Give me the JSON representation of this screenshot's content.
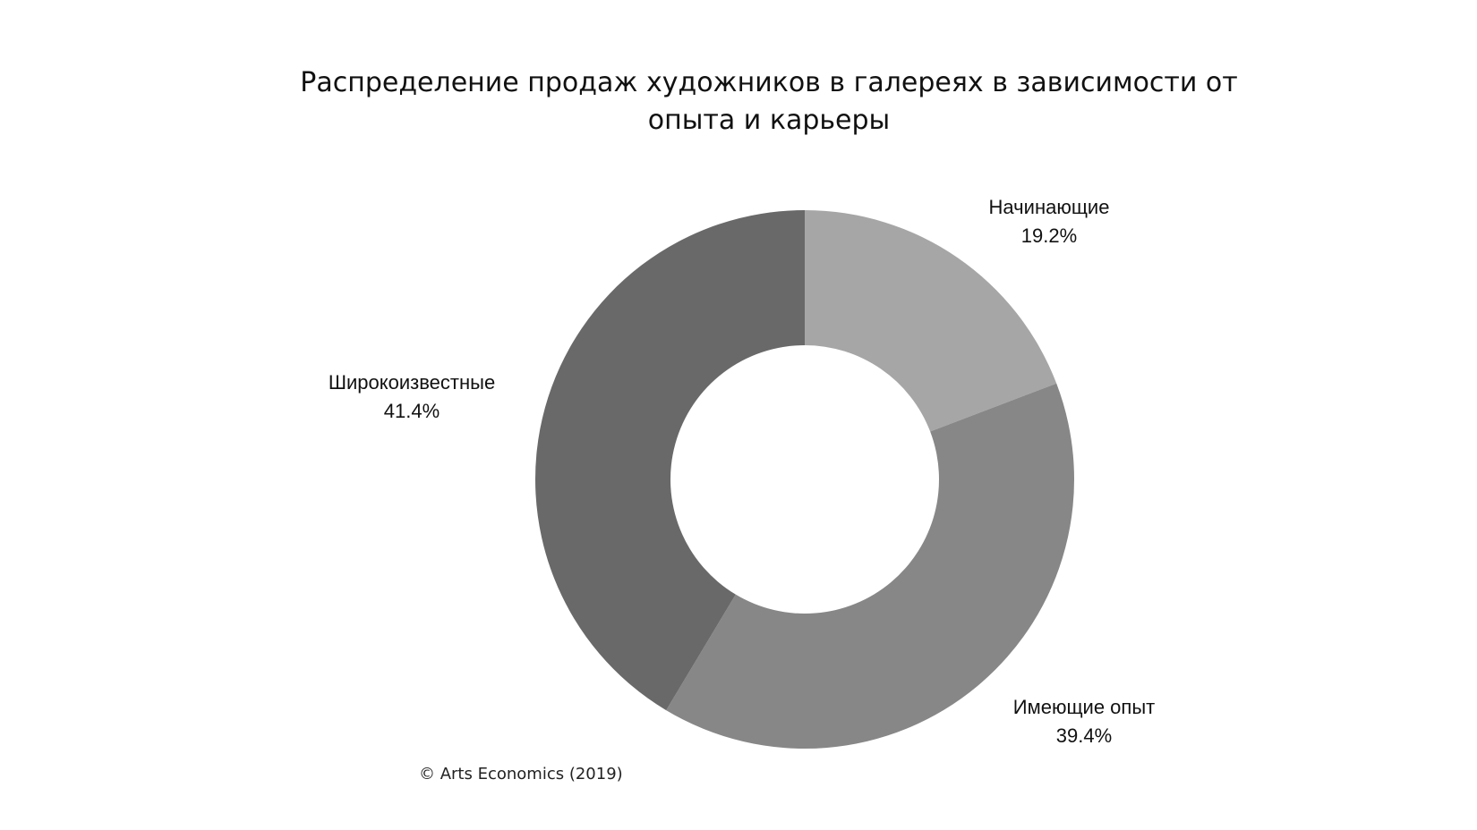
{
  "chart_data": {
    "type": "pie",
    "title_lines": [
      "Распределение продаж художников в галереях в зависимости от",
      "опыта и карьеры"
    ],
    "donut": true,
    "slices": [
      {
        "label": "Начинающие",
        "value": 19.2,
        "value_label": "19.2%",
        "color": "#a6a6a6"
      },
      {
        "label": "Имеющие опыт",
        "value": 39.4,
        "value_label": "39.4%",
        "color": "#878787"
      },
      {
        "label": "Широкоизвестные",
        "value": 41.4,
        "value_label": "41.4%",
        "color": "#696969"
      }
    ]
  },
  "source": "© Arts Economics (2019)"
}
